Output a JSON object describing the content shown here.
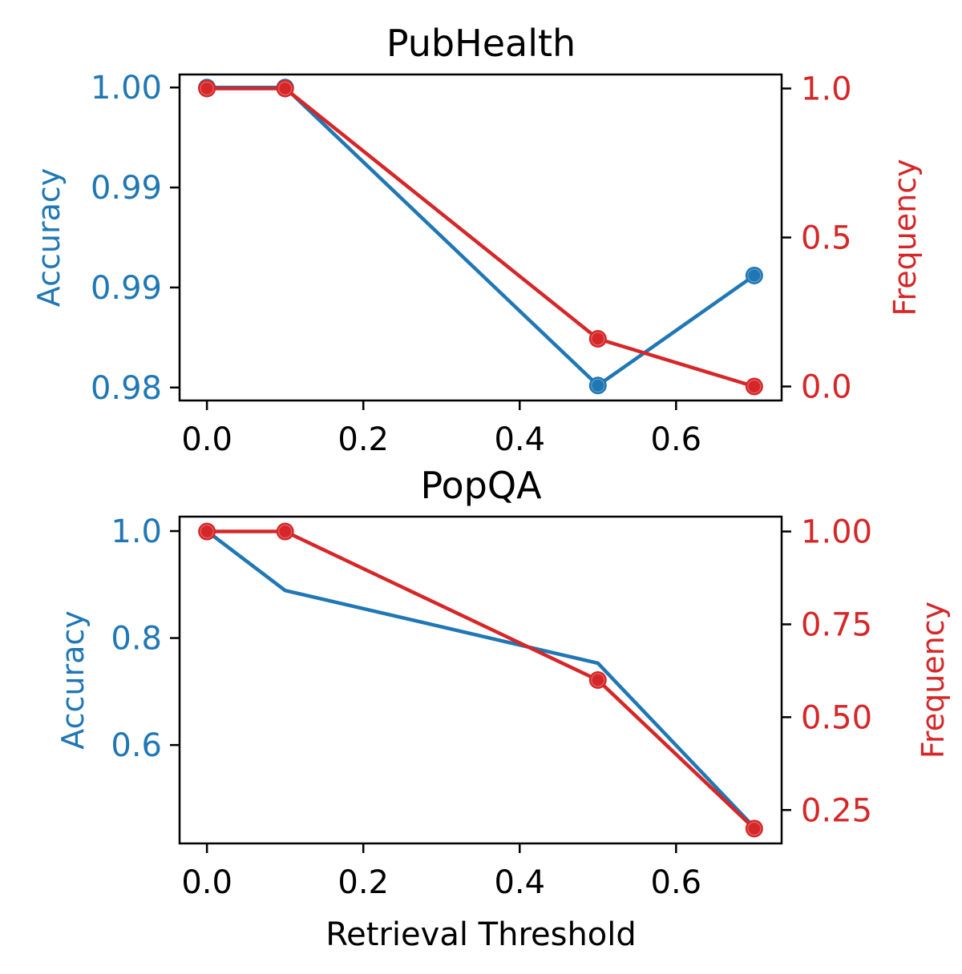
{
  "colors": {
    "accuracy": "#1f77b4",
    "frequency": "#d62728",
    "axes": "#000000"
  },
  "chart_data": [
    {
      "type": "line",
      "title": "PubHealth",
      "xlabel": "",
      "x": [
        0.0,
        0.1,
        0.5,
        0.7
      ],
      "xlim": [
        -0.035,
        0.735
      ],
      "xticks": [
        0.0,
        0.2,
        0.4,
        0.6
      ],
      "xtick_labels": [
        "0.0",
        "0.2",
        "0.4",
        "0.6"
      ],
      "grid": false,
      "legend": "none",
      "left_axis": {
        "label": "Accuracy",
        "ylim": [
          0.98435,
          1.00065
        ],
        "ticks": [
          1.0,
          0.995,
          0.99,
          0.985
        ],
        "tick_labels": [
          "1.00",
          "0.99",
          "0.99",
          "0.98"
        ]
      },
      "right_axis": {
        "label": "Frequency",
        "ylim": [
          -0.047,
          1.047
        ],
        "ticks": [
          1.0,
          0.5,
          0.0
        ],
        "tick_labels": [
          "1.0",
          "0.5",
          "0.0"
        ]
      },
      "series": [
        {
          "name": "Accuracy",
          "axis": "left",
          "color_key": "accuracy",
          "markers": true,
          "values": [
            1.0,
            1.0,
            0.9851,
            0.9906
          ]
        },
        {
          "name": "Frequency",
          "axis": "right",
          "color_key": "frequency",
          "markers": true,
          "values": [
            1.0,
            1.0,
            0.16,
            0.0
          ]
        }
      ]
    },
    {
      "type": "line",
      "title": "PopQA",
      "xlabel": "Retrieval Threshold",
      "x": [
        0.0,
        0.1,
        0.5,
        0.7
      ],
      "xlim": [
        -0.035,
        0.735
      ],
      "xticks": [
        0.0,
        0.2,
        0.4,
        0.6
      ],
      "xtick_labels": [
        "0.0",
        "0.2",
        "0.4",
        "0.6"
      ],
      "grid": false,
      "legend": "none",
      "left_axis": {
        "label": "Accuracy",
        "ylim": [
          0.416,
          1.027
        ],
        "ticks": [
          1.0,
          0.8,
          0.6
        ],
        "tick_labels": [
          "1.0",
          "0.8",
          "0.6"
        ]
      },
      "right_axis": {
        "label": "Frequency",
        "ylim": [
          0.16,
          1.04
        ],
        "ticks": [
          1.0,
          0.75,
          0.5,
          0.25
        ],
        "tick_labels": [
          "1.00",
          "0.75",
          "0.50",
          "0.25"
        ]
      },
      "series": [
        {
          "name": "Accuracy",
          "axis": "left",
          "color_key": "accuracy",
          "markers": false,
          "values": [
            1.0,
            0.889,
            0.753,
            0.446
          ]
        },
        {
          "name": "Frequency",
          "axis": "right",
          "color_key": "frequency",
          "markers": true,
          "values": [
            1.0,
            1.0,
            0.6,
            0.2
          ]
        }
      ]
    }
  ]
}
